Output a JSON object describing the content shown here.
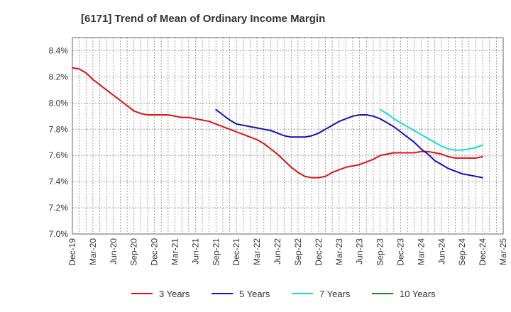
{
  "chart_data": {
    "type": "line",
    "title": "[6171]  Trend of Mean of Ordinary Income Margin",
    "xlabel": "",
    "ylabel": "",
    "x_ticks": [
      "Dec-19",
      "Mar-20",
      "Jun-20",
      "Sep-20",
      "Dec-20",
      "Mar-21",
      "Jun-21",
      "Sep-21",
      "Dec-21",
      "Mar-22",
      "Jun-22",
      "Sep-22",
      "Dec-22",
      "Mar-23",
      "Jun-23",
      "Sep-23",
      "Dec-23",
      "Mar-24",
      "Jun-24",
      "Sep-24",
      "Dec-24",
      "Mar-25"
    ],
    "y_ticks": [
      "7.0%",
      "7.2%",
      "7.4%",
      "7.6%",
      "7.8%",
      "8.0%",
      "8.2%",
      "8.4%"
    ],
    "ylim": [
      7.0,
      8.5
    ],
    "grid": true,
    "legend_position": "bottom",
    "series": [
      {
        "name": "3 Years",
        "color": "#dd1111",
        "points": [
          [
            "Dec-19",
            8.27
          ],
          [
            "Jan-20",
            8.26
          ],
          [
            "Feb-20",
            8.23
          ],
          [
            "Mar-20",
            8.18
          ],
          [
            "Apr-20",
            8.14
          ],
          [
            "May-20",
            8.1
          ],
          [
            "Jun-20",
            8.06
          ],
          [
            "Jul-20",
            8.02
          ],
          [
            "Aug-20",
            7.98
          ],
          [
            "Sep-20",
            7.94
          ],
          [
            "Oct-20",
            7.92
          ],
          [
            "Nov-20",
            7.91
          ],
          [
            "Dec-20",
            7.91
          ],
          [
            "Jan-21",
            7.91
          ],
          [
            "Feb-21",
            7.91
          ],
          [
            "Mar-21",
            7.9
          ],
          [
            "Apr-21",
            7.89
          ],
          [
            "May-21",
            7.89
          ],
          [
            "Jun-21",
            7.88
          ],
          [
            "Jul-21",
            7.87
          ],
          [
            "Aug-21",
            7.86
          ],
          [
            "Sep-21",
            7.84
          ],
          [
            "Oct-21",
            7.82
          ],
          [
            "Nov-21",
            7.8
          ],
          [
            "Dec-21",
            7.78
          ],
          [
            "Jan-22",
            7.76
          ],
          [
            "Feb-22",
            7.74
          ],
          [
            "Mar-22",
            7.72
          ],
          [
            "Apr-22",
            7.69
          ],
          [
            "May-22",
            7.65
          ],
          [
            "Jun-22",
            7.61
          ],
          [
            "Jul-22",
            7.56
          ],
          [
            "Aug-22",
            7.51
          ],
          [
            "Sep-22",
            7.47
          ],
          [
            "Oct-22",
            7.44
          ],
          [
            "Nov-22",
            7.43
          ],
          [
            "Dec-22",
            7.43
          ],
          [
            "Jan-23",
            7.44
          ],
          [
            "Feb-23",
            7.47
          ],
          [
            "Mar-23",
            7.49
          ],
          [
            "Apr-23",
            7.51
          ],
          [
            "May-23",
            7.52
          ],
          [
            "Jun-23",
            7.53
          ],
          [
            "Jul-23",
            7.55
          ],
          [
            "Aug-23",
            7.57
          ],
          [
            "Sep-23",
            7.6
          ],
          [
            "Oct-23",
            7.61
          ],
          [
            "Nov-23",
            7.62
          ],
          [
            "Dec-23",
            7.62
          ],
          [
            "Jan-24",
            7.62
          ],
          [
            "Feb-24",
            7.62
          ],
          [
            "Mar-24",
            7.63
          ],
          [
            "Apr-24",
            7.63
          ],
          [
            "May-24",
            7.62
          ],
          [
            "Jun-24",
            7.61
          ],
          [
            "Jul-24",
            7.59
          ],
          [
            "Aug-24",
            7.58
          ],
          [
            "Sep-24",
            7.58
          ],
          [
            "Oct-24",
            7.58
          ],
          [
            "Nov-24",
            7.58
          ],
          [
            "Dec-24",
            7.59
          ]
        ]
      },
      {
        "name": "5 Years",
        "color": "#1111bb",
        "points": [
          [
            "Sep-21",
            7.95
          ],
          [
            "Oct-21",
            7.91
          ],
          [
            "Nov-21",
            7.87
          ],
          [
            "Dec-21",
            7.84
          ],
          [
            "Jan-22",
            7.83
          ],
          [
            "Feb-22",
            7.82
          ],
          [
            "Mar-22",
            7.81
          ],
          [
            "Apr-22",
            7.8
          ],
          [
            "May-22",
            7.79
          ],
          [
            "Jun-22",
            7.77
          ],
          [
            "Jul-22",
            7.75
          ],
          [
            "Aug-22",
            7.74
          ],
          [
            "Sep-22",
            7.74
          ],
          [
            "Oct-22",
            7.74
          ],
          [
            "Nov-22",
            7.75
          ],
          [
            "Dec-22",
            7.77
          ],
          [
            "Jan-23",
            7.8
          ],
          [
            "Feb-23",
            7.83
          ],
          [
            "Mar-23",
            7.86
          ],
          [
            "Apr-23",
            7.88
          ],
          [
            "May-23",
            7.9
          ],
          [
            "Jun-23",
            7.91
          ],
          [
            "Jul-23",
            7.91
          ],
          [
            "Aug-23",
            7.9
          ],
          [
            "Sep-23",
            7.88
          ],
          [
            "Oct-23",
            7.85
          ],
          [
            "Nov-23",
            7.82
          ],
          [
            "Dec-23",
            7.78
          ],
          [
            "Jan-24",
            7.74
          ],
          [
            "Feb-24",
            7.7
          ],
          [
            "Mar-24",
            7.65
          ],
          [
            "Apr-24",
            7.61
          ],
          [
            "May-24",
            7.56
          ],
          [
            "Jun-24",
            7.53
          ],
          [
            "Jul-24",
            7.5
          ],
          [
            "Aug-24",
            7.48
          ],
          [
            "Sep-24",
            7.46
          ],
          [
            "Oct-24",
            7.45
          ],
          [
            "Nov-24",
            7.44
          ],
          [
            "Dec-24",
            7.43
          ]
        ]
      },
      {
        "name": "7 Years",
        "color": "#11dddd",
        "points": [
          [
            "Sep-23",
            7.95
          ],
          [
            "Oct-23",
            7.92
          ],
          [
            "Nov-23",
            7.88
          ],
          [
            "Dec-23",
            7.85
          ],
          [
            "Jan-24",
            7.82
          ],
          [
            "Feb-24",
            7.79
          ],
          [
            "Mar-24",
            7.76
          ],
          [
            "Apr-24",
            7.73
          ],
          [
            "May-24",
            7.7
          ],
          [
            "Jun-24",
            7.67
          ],
          [
            "Jul-24",
            7.65
          ],
          [
            "Aug-24",
            7.64
          ],
          [
            "Sep-24",
            7.64
          ],
          [
            "Oct-24",
            7.65
          ],
          [
            "Nov-24",
            7.66
          ],
          [
            "Dec-24",
            7.68
          ]
        ]
      },
      {
        "name": "10 Years",
        "color": "#118811",
        "points": []
      }
    ]
  }
}
